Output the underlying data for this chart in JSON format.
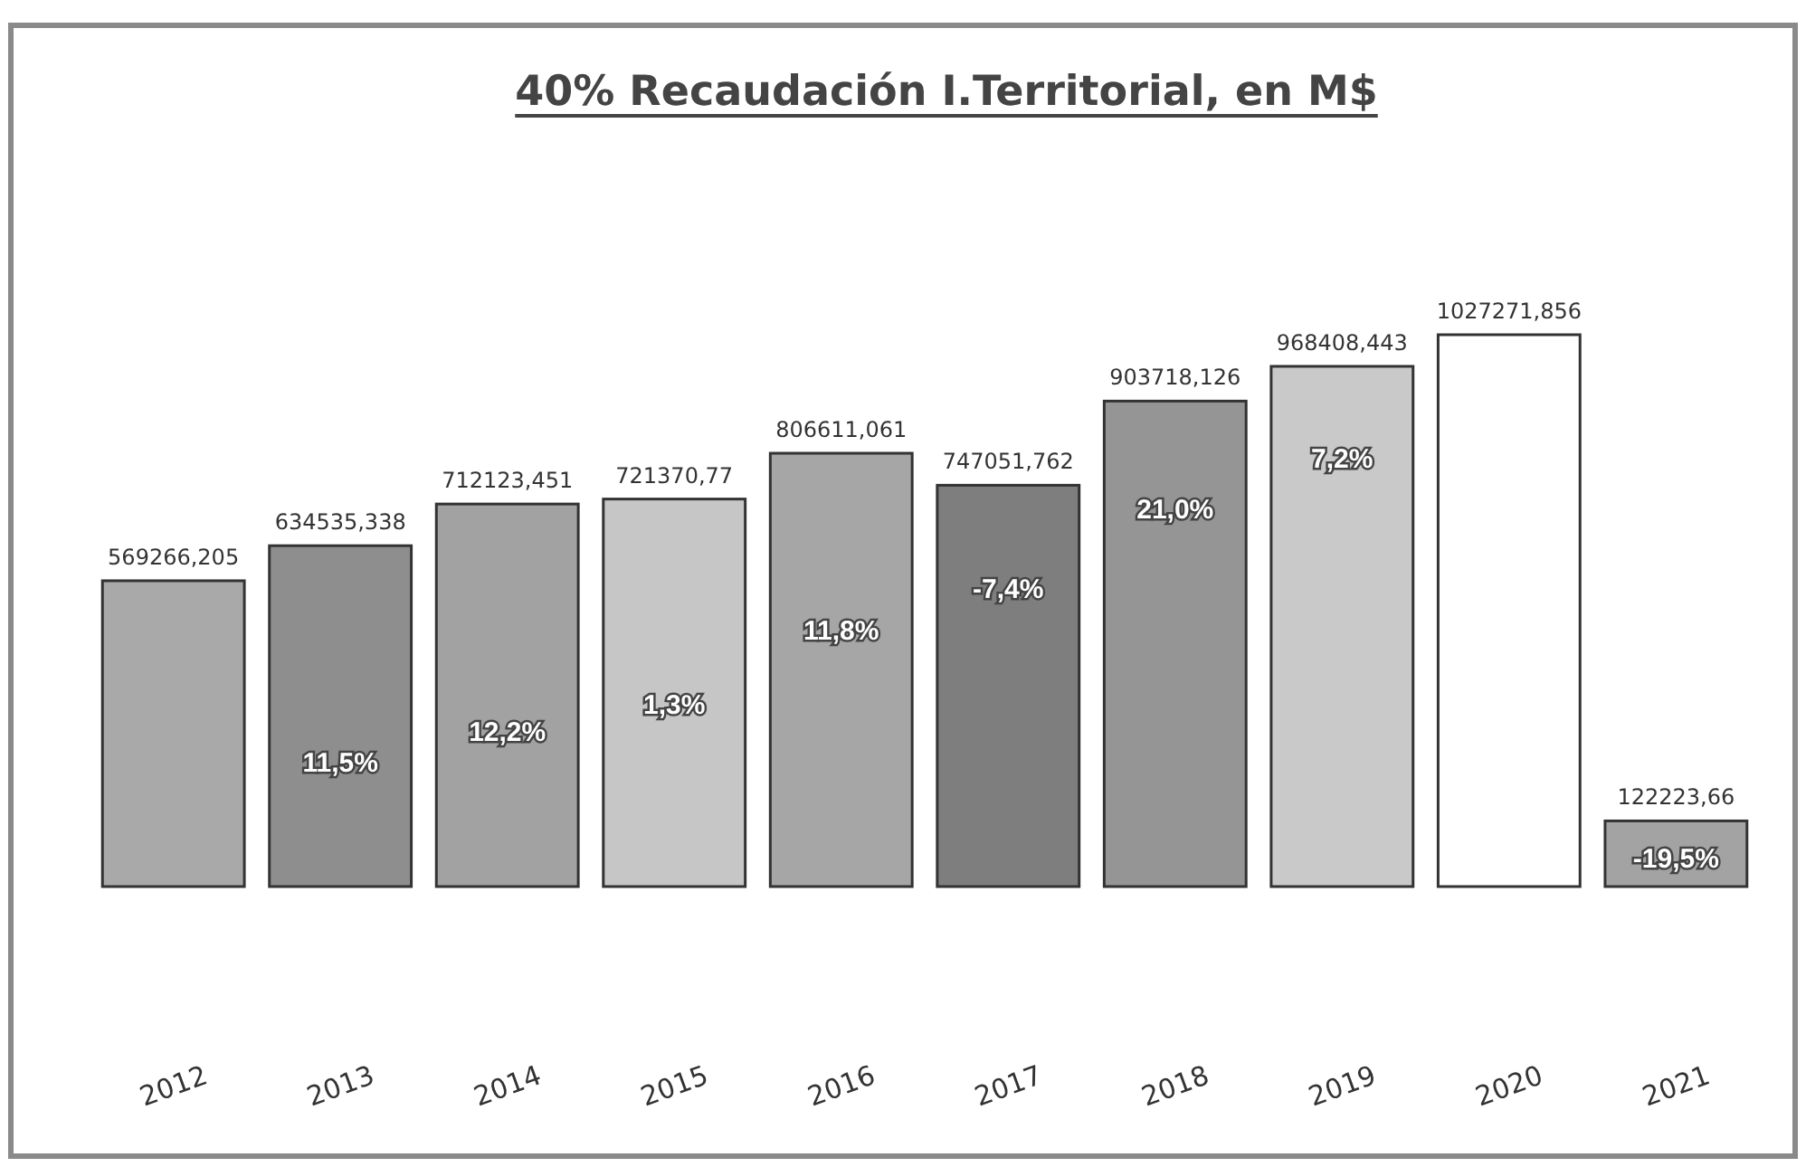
{
  "chart_data": {
    "type": "bar",
    "title": "40% Recaudación I.Territorial, en M$",
    "categories": [
      "2012",
      "2013",
      "2014",
      "2015",
      "2016",
      "2017",
      "2018",
      "2019",
      "2020",
      "2021"
    ],
    "values": [
      569266.205,
      634535.338,
      712123.451,
      721370.77,
      806611.061,
      747051.762,
      903718.126,
      968408.443,
      1027271.856,
      122223.66
    ],
    "colors": [
      "#a9a9a9",
      "#8e8e8e",
      "#a2a2a2",
      "#c6c6c6",
      "#a6a6a6",
      "#7e7e7e",
      "#959595",
      "#c9c9c9",
      "#ffffff",
      "#a3a3a3"
    ],
    "value_labels": [
      "569266,205",
      "634535,338",
      "712123,451",
      "721370,77",
      "806611,061",
      "747051,762",
      "903718,126",
      "968408,443",
      "1027271,856",
      "122223,66"
    ],
    "annotations": [
      "11,5%",
      "12,2%",
      "1,3%",
      "11,8%",
      "-7,4%",
      "21,0%",
      "7,2%",
      "-19,5%"
    ]
  }
}
